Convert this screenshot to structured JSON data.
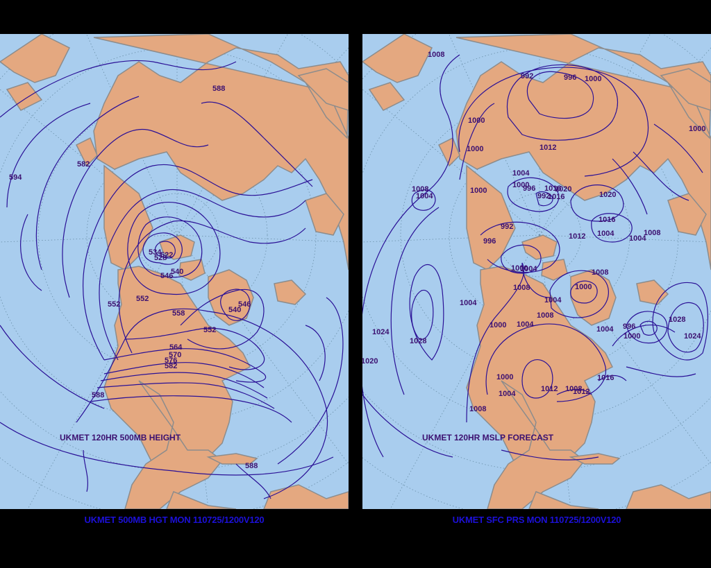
{
  "left_map": {
    "inner_title": "UKMET 120HR 500MB HEIGHT",
    "footer": "UKMET 500MB HGT MON 110725/1200V120",
    "contour_labels": [
      "594",
      "588",
      "582",
      "534",
      "528",
      "522",
      "546",
      "540",
      "552",
      "552",
      "558",
      "546",
      "540",
      "552",
      "564",
      "570",
      "576",
      "582",
      "588",
      "588"
    ]
  },
  "right_map": {
    "inner_title": "UKMET 120HR MSLP FORECAST",
    "footer": "UKMET SFC PRS MON 110725/1200V120",
    "contour_labels": [
      "1008",
      "992",
      "996",
      "1000",
      "1000",
      "1000",
      "1012",
      "1000",
      "1004",
      "1000",
      "996",
      "1016",
      "1020",
      "1016",
      "1020",
      "1008",
      "1004",
      "1000",
      "992",
      "1016",
      "992",
      "996",
      "1012",
      "1004",
      "1004",
      "1008",
      "1000",
      "1008",
      "1000",
      "1004",
      "1004",
      "1004",
      "1008",
      "1008",
      "1000",
      "1004",
      "1004",
      "996",
      "1000",
      "1028",
      "1024",
      "1024",
      "1028",
      "1020",
      "1016",
      "1000",
      "1004",
      "1012",
      "1008",
      "1012",
      "1008"
    ]
  },
  "colors": {
    "ocean": "#a9cdee",
    "land": "#e4a880",
    "border": "#8c8c8c",
    "contour": "#2a1096",
    "label": "#3c1070",
    "footer_text": "#1c10d8",
    "background": "#000000"
  }
}
